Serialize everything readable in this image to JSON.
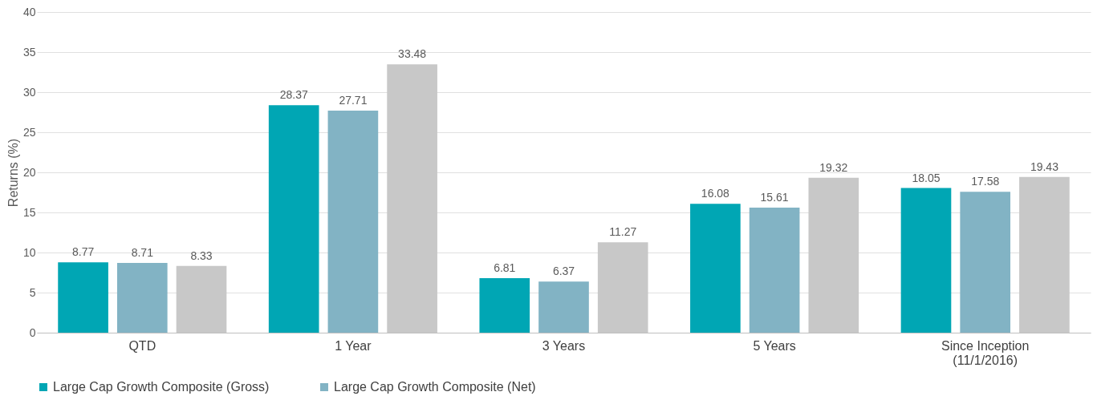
{
  "chart_data": {
    "type": "bar",
    "ylabel": "Returns (%)",
    "categories": [
      "QTD",
      "1 Year",
      "3 Years",
      "5 Years",
      "Since Inception\n(11/1/2016)"
    ],
    "series": [
      {
        "name": "Large Cap Growth Composite (Gross)",
        "color": "#00a6b4",
        "values": [
          8.77,
          28.37,
          6.81,
          16.08,
          18.05
        ]
      },
      {
        "name": "Large Cap Growth Composite (Net)",
        "color": "#82b3c4",
        "values": [
          8.71,
          27.71,
          6.37,
          15.61,
          17.58
        ]
      },
      {
        "color": "#c8c8c8",
        "values": [
          8.33,
          33.48,
          11.27,
          19.32,
          19.43
        ]
      }
    ],
    "ylim": [
      0,
      40
    ],
    "yticks": [
      0,
      5,
      10,
      15,
      20,
      25,
      30,
      35,
      40
    ],
    "grid": "y",
    "legend": "bottom",
    "data_labels": true
  }
}
